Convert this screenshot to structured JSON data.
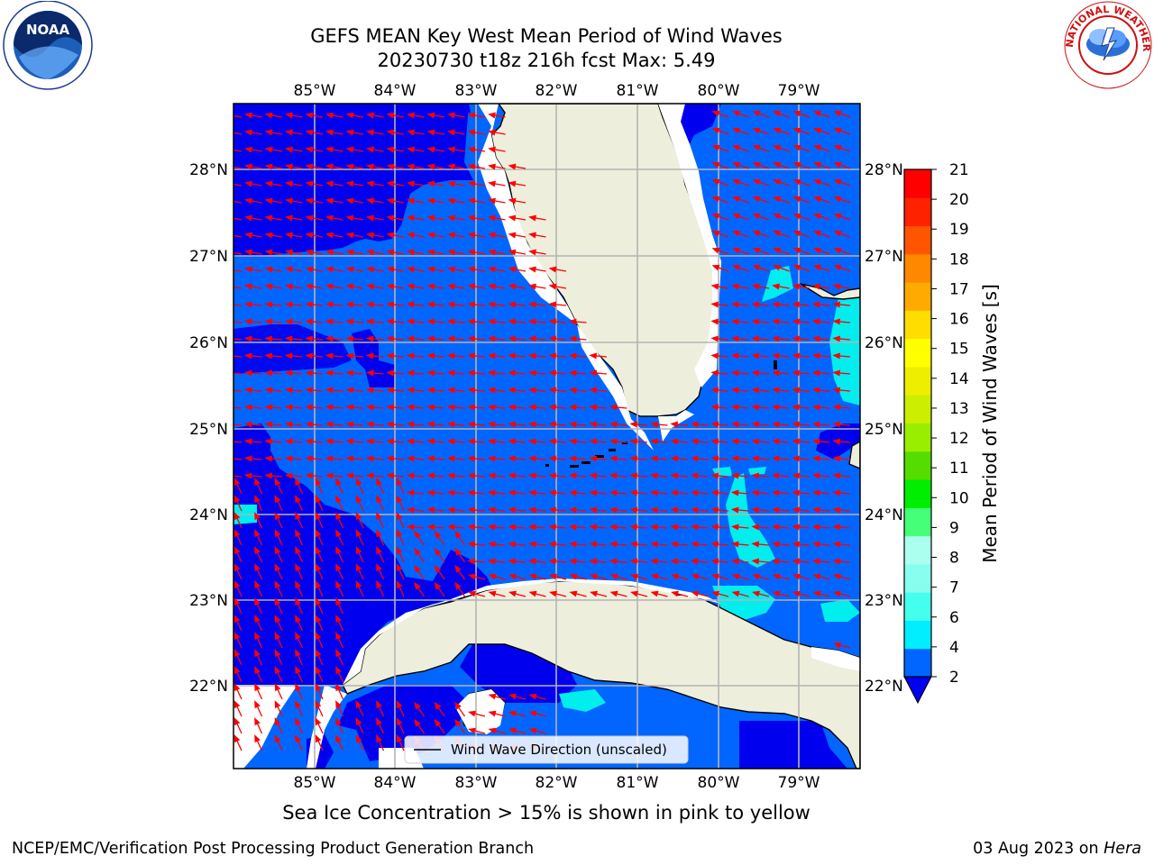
{
  "header": {
    "title_line1": "GEFS MEAN Key West Mean Period of Wind Waves",
    "title_line2": "20230730 t18z 216h fcst    Max: 5.49"
  },
  "map": {
    "lon_labels": [
      "85°W",
      "84°W",
      "83°W",
      "82°W",
      "81°W",
      "80°W",
      "79°W"
    ],
    "lat_labels": [
      "28°N",
      "27°N",
      "26°N",
      "25°N",
      "24°N",
      "23°N",
      "22°N"
    ],
    "legend_label": "Wind Wave Direction (unscaled)",
    "colors": {
      "land": "#eeeedd",
      "band_2_4": "#0066ff",
      "band_under_2": "#0000ee",
      "band_4_6": "#00eeee",
      "arrow": "#ff0000",
      "grid": "#b4b4b4"
    }
  },
  "colorbar": {
    "label": "Mean Period of Wind Waves [s]",
    "ticks": [
      "2",
      "4",
      "6",
      "7",
      "8",
      "9",
      "10",
      "11",
      "12",
      "13",
      "14",
      "15",
      "16",
      "17",
      "18",
      "19",
      "20",
      "21"
    ],
    "colors": [
      "#0066ff",
      "#00eeff",
      "#44ffee",
      "#88ffee",
      "#aaffee",
      "#44ff77",
      "#00ee00",
      "#55dd00",
      "#99ee00",
      "#ccee00",
      "#eeee00",
      "#ffff00",
      "#ffdd00",
      "#ffaa00",
      "#ff8800",
      "#ff5500",
      "#ff2200",
      "#ff0000"
    ]
  },
  "footer": {
    "note": "Sea Ice Concentration > 15% is shown in pink to yellow",
    "credit": "NCEP/EMC/Verification Post Processing Product Generation Branch",
    "date": "03 Aug 2023 on ",
    "machine": "Hera"
  },
  "logos": {
    "noaa_text": "NOAA",
    "nws_text": "NATIONAL WEATHER SERVICE"
  }
}
